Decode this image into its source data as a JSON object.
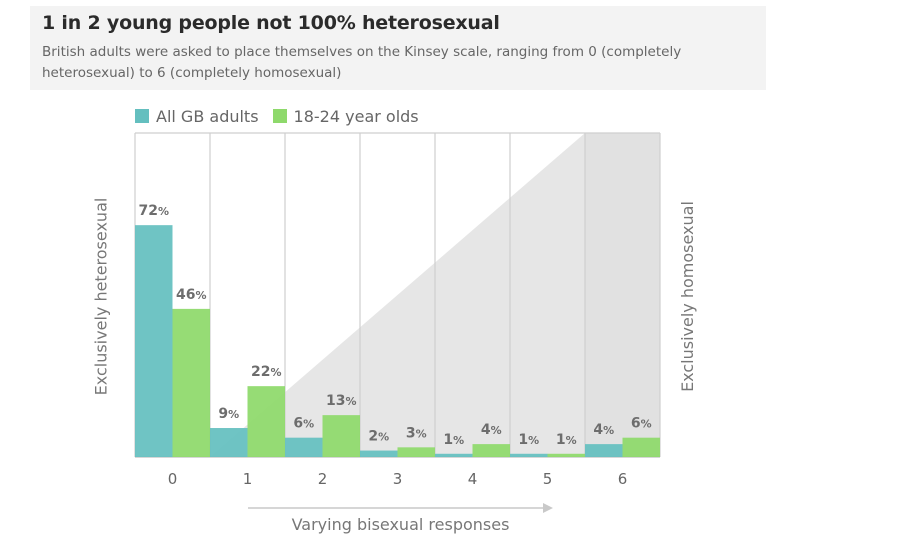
{
  "header": {
    "title": "1 in 2 young people not 100% heterosexual",
    "subtitle": "British adults were asked to place themselves on the Kinsey scale, ranging from 0 (completely heterosexual) to 6 (completely homosexual)"
  },
  "colors": {
    "all_adults": "#64bfbf",
    "young": "#8ed96b",
    "header_bg": "#f3f3f3",
    "triangle": "#e6e6e6",
    "grid": "#cfcfcf"
  },
  "chart_data": {
    "type": "bar",
    "categories": [
      "0",
      "1",
      "2",
      "3",
      "4",
      "5",
      "6"
    ],
    "series": [
      {
        "name": "All GB adults",
        "values": [
          72,
          9,
          6,
          2,
          1,
          1,
          4
        ],
        "labels": [
          "72%",
          "9%",
          "6%",
          "2%",
          "1%",
          "1%",
          "4%"
        ]
      },
      {
        "name": "18-24 year olds",
        "values": [
          46,
          22,
          13,
          3,
          4,
          1,
          6
        ],
        "labels": [
          "46%",
          "22%",
          "13%",
          "3%",
          "4%",
          "1%",
          "6%"
        ]
      }
    ],
    "ylim": [
      0,
      100
    ],
    "grid": true,
    "legend_position": "top-left",
    "ylabel_left": "Exclusively heterosexual",
    "ylabel_right": "Exclusively homosexual",
    "xlabel": "Varying bisexual responses"
  }
}
